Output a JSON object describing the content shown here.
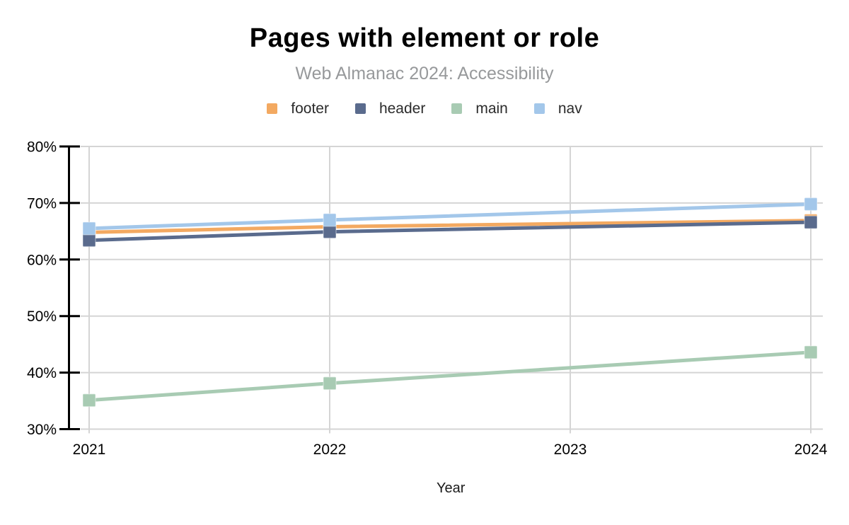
{
  "chart_data": {
    "type": "line",
    "title": "Pages with element or role",
    "subtitle": "Web Almanac 2024: Accessibility",
    "xlabel": "Year",
    "x": [
      2021,
      2022,
      2024
    ],
    "x_axis_ticks": [
      "2021",
      "2022",
      "2023",
      "2024"
    ],
    "y_ticks": [
      80,
      70,
      60,
      50,
      40,
      30
    ],
    "y_tick_suffix": "%",
    "ylim": [
      30,
      80
    ],
    "grid": true,
    "legend_position": "top",
    "marker_shape": "square",
    "series": [
      {
        "name": "footer",
        "color": "#F3A961",
        "values": [
          64.8,
          65.8,
          66.9
        ]
      },
      {
        "name": "header",
        "color": "#5A6B8D",
        "values": [
          63.4,
          64.9,
          66.6
        ]
      },
      {
        "name": "main",
        "color": "#A8CBB3",
        "values": [
          35.1,
          38.1,
          43.6
        ]
      },
      {
        "name": "nav",
        "color": "#A3C7EA",
        "values": [
          65.5,
          67.0,
          69.8
        ]
      }
    ],
    "colors": {
      "background": "#FFFFFF",
      "title_text": "#000000",
      "subtitle_text": "#97999B",
      "legend_text": "#2B2B2B",
      "tick_text": "#000000",
      "axis": "#000000",
      "gridline": "#D5D5D5"
    }
  }
}
